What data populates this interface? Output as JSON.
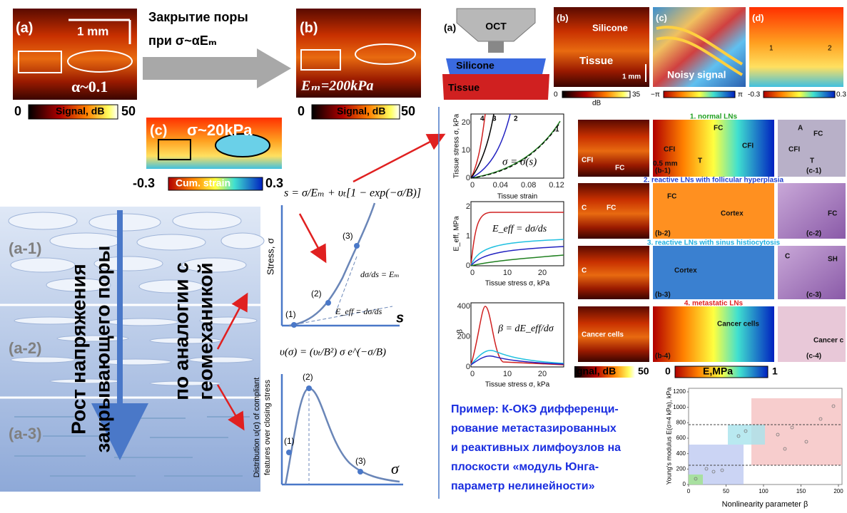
{
  "top_left": {
    "panel_a": {
      "label": "(a)",
      "scale": "1 mm",
      "alpha": "α~0.1"
    },
    "colorbar_a": {
      "min": "0",
      "label": "Signal, dB",
      "max": "50"
    },
    "arrow_text": [
      "Закрытие поры",
      "при σ~αEₘ"
    ],
    "panel_b": {
      "label": "(b)",
      "modulus": "Eₘ=200kPa"
    },
    "colorbar_b": {
      "min": "0",
      "label": "Signal, dB",
      "max": "50"
    },
    "panel_c": {
      "label": "(c)",
      "stress": "σ~20kPa"
    },
    "colorbar_c": {
      "min": "-0.3",
      "label": "Cum. strain",
      "max": "0.3"
    }
  },
  "model": {
    "formula_s": "s = σ/Eₘ + υₜ[1 − exp(−σ/B)]",
    "pore_labels": [
      "(a-1)",
      "(a-2)",
      "(a-3)"
    ],
    "vertical_text": [
      "Рост напряжения",
      "закрывающего поры",
      "по аналогии с",
      "геомеханикой"
    ],
    "stress_plot": {
      "ylabel": "Stress, σ",
      "xlabel": "s",
      "points": [
        "(1)",
        "(2)",
        "(3)"
      ],
      "slope_em": "dσ/ds = Eₘ",
      "slope_eff": "E_eff = dσ/ds"
    },
    "distribution_plot": {
      "formula": "υ(σ) = (υₜ/B²) σ e^(−σ/B)",
      "ylabel": [
        "Distribution υ(σ) of compliant",
        "features over closing stress"
      ],
      "xlabel": "σ",
      "points": [
        "(1)",
        "(2)",
        "(3)"
      ]
    }
  },
  "oct_setup": {
    "label": "(a)",
    "probe": "OCT",
    "layer_1": "Silicone",
    "layer_2": "Tissue"
  },
  "oct_images": {
    "b": {
      "label": "(b)",
      "silicone": "Silicone",
      "tissue": "Tissue",
      "scale": "1 mm",
      "cb_min": "0",
      "cb_max": "35",
      "cb_unit": "dB"
    },
    "c": {
      "label": "(c)",
      "text": "Noisy signal",
      "cb_min": "−π",
      "cb_max": "π"
    },
    "d": {
      "label": "(d)",
      "p1": "1",
      "p2": "2",
      "cb_min": "-0.3",
      "cb_max": "0.3"
    }
  },
  "tissue_plots": {
    "strain": {
      "ylabel": "Tissue stress σ, kPa",
      "xlabel": "Tissue strain",
      "xticks": [
        "0",
        "0.04",
        "0.08",
        "0.12"
      ],
      "yticks": [
        "0",
        "10",
        "20"
      ],
      "curve_labels": [
        "4",
        "3",
        "2",
        "1"
      ],
      "formula": "σ = σ(s)"
    },
    "modulus": {
      "ylabel": "E_eff, MPa",
      "xlabel": "Tissue stress σ, kPa",
      "xticks": [
        "0",
        "10",
        "20"
      ],
      "yticks": [
        "0",
        "1",
        "2"
      ],
      "formula": "E_eff = dσ/ds"
    },
    "beta": {
      "ylabel": "β",
      "xlabel": "Tissue stress σ, kPa",
      "xticks": [
        "0",
        "10",
        "20"
      ],
      "yticks": [
        "0",
        "200",
        "400"
      ],
      "formula": "β = dE_eff/dσ"
    }
  },
  "lymph_nodes": {
    "rows": [
      {
        "title": "1. normal LNs",
        "oct": [
          "CFI",
          "FC"
        ],
        "elasto": [
          "(b-1)",
          "CFI",
          "FC",
          "T",
          "CFI",
          "0.5 mm"
        ],
        "histo": [
          "(c-1)",
          "A",
          "FC",
          "CFI",
          "T"
        ]
      },
      {
        "title": "2. reactive LNs with follicular hyperplasia",
        "oct": [
          "C",
          "FC"
        ],
        "elasto": [
          "(b-2)",
          "FC",
          "Cortex"
        ],
        "histo": [
          "(c-2)",
          "FC"
        ]
      },
      {
        "title": "3. reactive LNs with sinus histiocytosis",
        "oct": [
          "C"
        ],
        "elasto": [
          "(b-3)",
          "Cortex"
        ],
        "histo": [
          "(c-3)",
          "C",
          "SH"
        ]
      },
      {
        "title": "4. metastatic LNs",
        "oct": [
          "Cancer cells"
        ],
        "elasto": [
          "(b-4)",
          "Cancer cells"
        ],
        "histo": [
          "(c-4)",
          "Cancer c"
        ]
      }
    ],
    "colorbar_signal": {
      "label": "gnal, dB",
      "max": "50"
    },
    "colorbar_modulus": {
      "min": "0",
      "label": "E,MPa",
      "max": "1"
    }
  },
  "example_text": [
    "Пример: К-ОКЭ дифференци-",
    "рование  метастазированных",
    "и реактивных лимфоузлов на",
    "плоскости «модуль Юнга-",
    "параметр нелинейности»"
  ],
  "scatter": {
    "ylabel": "Young's modulus E(σ=4 kPa), kPa",
    "xlabel": "Nonlinearity parameter β",
    "yticks": [
      0,
      200,
      400,
      600,
      800,
      1000,
      1200
    ],
    "xticks": [
      0,
      50,
      100,
      150,
      200
    ]
  }
}
